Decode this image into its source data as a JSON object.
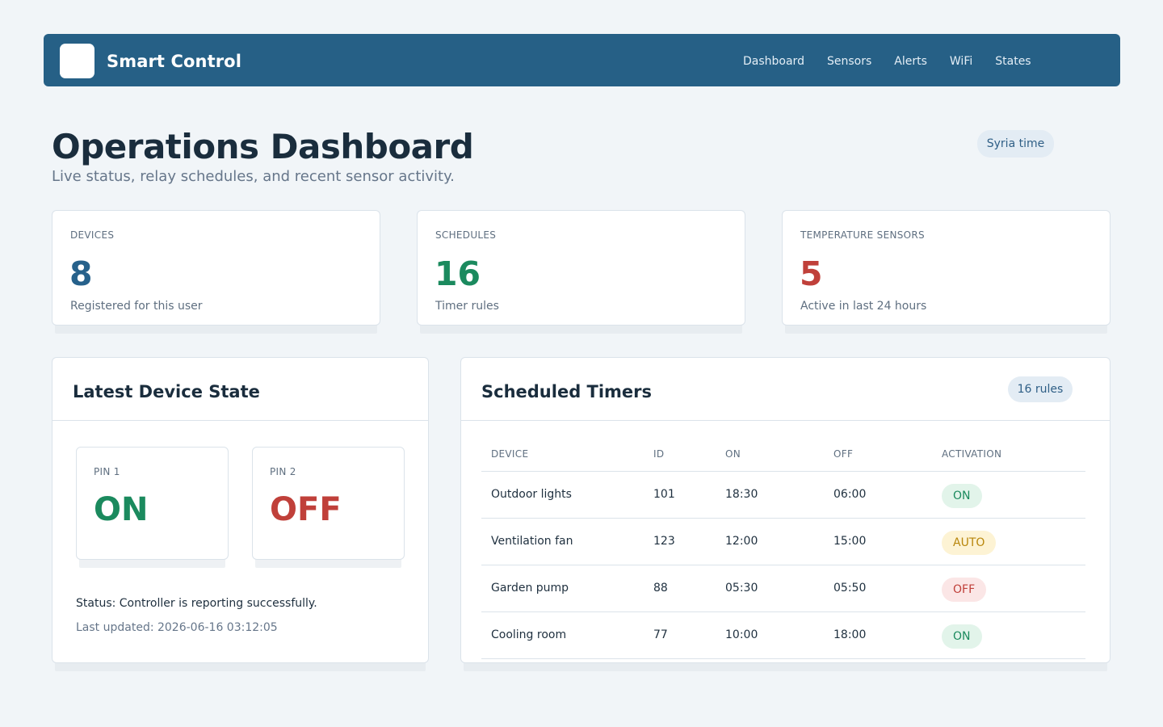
{
  "app": {
    "brand": "Smart Control"
  },
  "nav": [
    "Dashboard",
    "Sensors",
    "Alerts",
    "WiFi",
    "States"
  ],
  "header": {
    "title": "Operations Dashboard",
    "subtitle": "Live status, relay schedules, and recent sensor activity.",
    "timezone": "Syria time"
  },
  "stats": [
    {
      "label": "DEVICES",
      "value": "8",
      "note": "Registered for this user",
      "color": "#26618b"
    },
    {
      "label": "SCHEDULES",
      "value": "16",
      "note": "Timer rules",
      "color": "#1b8a5e"
    },
    {
      "label": "TEMPERATURE SENSORS",
      "value": "5",
      "note": "Active in last 24 hours",
      "color": "#c0403a"
    }
  ],
  "device_state": {
    "title": "Latest Device State",
    "pins": [
      {
        "label": "PIN 1",
        "state": "ON",
        "color": "#1b8a5e"
      },
      {
        "label": "PIN 2",
        "state": "OFF",
        "color": "#c0403a"
      }
    ],
    "status": "Status: Controller is reporting successfully.",
    "updated": "Last updated: 2026-06-16 03:12:05"
  },
  "timers": {
    "title": "Scheduled Timers",
    "badge": "16 rules",
    "columns": [
      "DEVICE",
      "ID",
      "ON",
      "OFF",
      "ACTIVATION"
    ],
    "rows": [
      {
        "device": "Outdoor lights",
        "id": "101",
        "on": "18:30",
        "off": "06:00",
        "activation": "ON"
      },
      {
        "device": "Ventilation fan",
        "id": "123",
        "on": "12:00",
        "off": "15:00",
        "activation": "AUTO"
      },
      {
        "device": "Garden pump",
        "id": "88",
        "on": "05:30",
        "off": "05:50",
        "activation": "OFF"
      },
      {
        "device": "Cooling room",
        "id": "77",
        "on": "10:00",
        "off": "18:00",
        "activation": "ON"
      }
    ],
    "badge_colors": {
      "ON": {
        "bg": "#e2f4ea",
        "fg": "#1b8a5e"
      },
      "AUTO": {
        "bg": "#fdf3d4",
        "fg": "#b8860b"
      },
      "OFF": {
        "bg": "#fbe6e6",
        "fg": "#c0403a"
      }
    }
  }
}
